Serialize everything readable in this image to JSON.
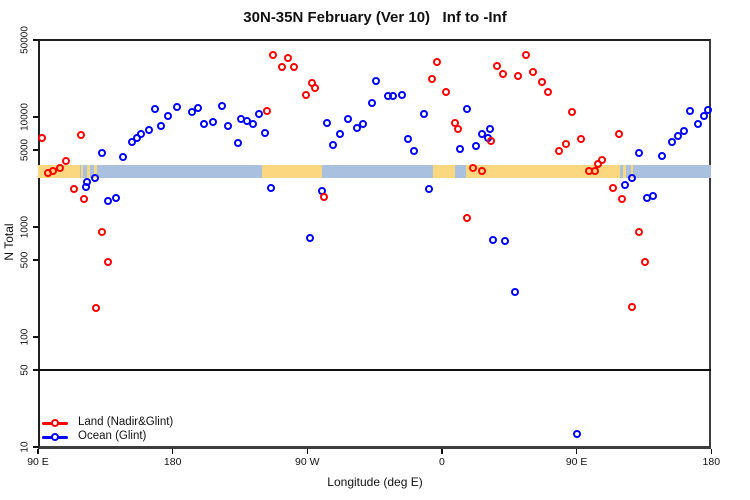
{
  "title": "30N-35N February (Ver 10)   Inf to -Inf",
  "x_axis_label": "Longitude (deg E)",
  "y_axis_label": "N Total",
  "legend": {
    "items": [
      {
        "label": "Land (Nadir&Glint)",
        "color": "#FF0000"
      },
      {
        "label": "Ocean (Glint)",
        "color": "#0000FF"
      }
    ]
  },
  "colors": {
    "land_series": "#FF0000",
    "ocean_series": "#0000FF",
    "strip_land": "#FBD87F",
    "strip_ocean": "#A9C0DE",
    "axis": "#111111"
  },
  "chart_data": {
    "type": "scatter",
    "title": "30N-35N February (Ver 10)   Inf to -Inf",
    "xlabel": "Longitude (deg E)",
    "ylabel": "N Total",
    "x_axis": {
      "note": "longitude wraps eastward, 450 deg span",
      "range": [
        90,
        540
      ],
      "ticks": [
        {
          "value": 90,
          "label": "90 E"
        },
        {
          "value": 180,
          "label": "180"
        },
        {
          "value": 270,
          "label": "90 W"
        },
        {
          "value": 360,
          "label": "0"
        },
        {
          "value": 450,
          "label": "90 E"
        },
        {
          "value": 540,
          "label": "180"
        }
      ],
      "grid": false
    },
    "y_axis": {
      "scale": "log",
      "range": [
        10,
        50000
      ],
      "ticks": [
        50000,
        10000,
        5000,
        1000,
        500,
        100,
        50,
        10
      ],
      "grid": false
    },
    "reference_line_n": 50,
    "legend_position": "bottom-left",
    "land_ocean_strip": {
      "n_range": [
        2800,
        3700
      ],
      "colors": {
        "land": "#FBD87F",
        "ocean": "#A9C0DE"
      },
      "segments": [
        {
          "type": "land",
          "from": 90,
          "to": 118
        },
        {
          "type": "ocean",
          "from": 118,
          "to": 240
        },
        {
          "type": "land",
          "from": 240,
          "to": 280
        },
        {
          "type": "ocean",
          "from": 280,
          "to": 354
        },
        {
          "type": "land",
          "from": 354,
          "to": 479
        },
        {
          "type": "ocean",
          "from": 479,
          "to": 540
        },
        {
          "type": "land",
          "from": 118.5,
          "to": 120
        },
        {
          "type": "land",
          "from": 122.5,
          "to": 124.5
        },
        {
          "type": "land",
          "from": 127.5,
          "to": 129.5
        },
        {
          "type": "ocean",
          "from": 368.5,
          "to": 376
        },
        {
          "type": "land",
          "from": 481,
          "to": 483
        },
        {
          "type": "land",
          "from": 486,
          "to": 488
        }
      ]
    },
    "series": [
      {
        "name": "Land (Nadir&Glint)",
        "color": "#FF0000",
        "points": [
          [
            93,
            6400
          ],
          [
            119,
            6900
          ],
          [
            109,
            4000
          ],
          [
            105,
            3430
          ],
          [
            100,
            3230
          ],
          [
            97,
            3100
          ],
          [
            114,
            2220
          ],
          [
            121,
            1790
          ],
          [
            133,
            900
          ],
          [
            137,
            480
          ],
          [
            129,
            183
          ],
          [
            247,
            36500
          ],
          [
            257,
            34200
          ],
          [
            253,
            28300
          ],
          [
            261,
            28300
          ],
          [
            273,
            20200
          ],
          [
            275,
            18200
          ],
          [
            269,
            15700
          ],
          [
            243,
            11400
          ],
          [
            281,
            1870
          ],
          [
            357,
            31900
          ],
          [
            353,
            22200
          ],
          [
            363,
            16900
          ],
          [
            397,
            29300
          ],
          [
            401,
            24800
          ],
          [
            411,
            23800
          ],
          [
            416,
            36500
          ],
          [
            421,
            25900
          ],
          [
            427,
            21000
          ],
          [
            431,
            16900
          ],
          [
            369,
            8800
          ],
          [
            371,
            7800
          ],
          [
            393,
            6100
          ],
          [
            381,
            3430
          ],
          [
            387,
            3230
          ],
          [
            377,
            1210
          ],
          [
            447,
            11100
          ],
          [
            453,
            6300
          ],
          [
            443,
            5700
          ],
          [
            438,
            4900
          ],
          [
            478,
            7000
          ],
          [
            467,
            4100
          ],
          [
            464,
            3730
          ],
          [
            458,
            3230
          ],
          [
            462,
            3230
          ],
          [
            474,
            2250
          ],
          [
            480,
            1790
          ],
          [
            492,
            900
          ],
          [
            496,
            480
          ],
          [
            487,
            187
          ]
        ]
      },
      {
        "name": "Ocean (Glint)",
        "color": "#0000FF",
        "points": [
          [
            168,
            11900
          ],
          [
            177,
            10300
          ],
          [
            183,
            12400
          ],
          [
            193,
            11100
          ],
          [
            197,
            12100
          ],
          [
            201,
            8650
          ],
          [
            172,
            8290
          ],
          [
            164,
            7630
          ],
          [
            159,
            7030
          ],
          [
            156,
            6440
          ],
          [
            153,
            5950
          ],
          [
            147,
            4360
          ],
          [
            133,
            4710
          ],
          [
            128,
            2780
          ],
          [
            123,
            2560
          ],
          [
            122,
            2330
          ],
          [
            142,
            1840
          ],
          [
            137,
            1720
          ],
          [
            213,
            12600
          ],
          [
            207,
            9000
          ],
          [
            217,
            8290
          ],
          [
            226,
            9600
          ],
          [
            230,
            9200
          ],
          [
            234,
            8650
          ],
          [
            238,
            10700
          ],
          [
            242,
            7200
          ],
          [
            224,
            5800
          ],
          [
            283,
            8800
          ],
          [
            297,
            9600
          ],
          [
            303,
            8000
          ],
          [
            307,
            8650
          ],
          [
            292,
            7030
          ],
          [
            287,
            5600
          ],
          [
            313,
            13300
          ],
          [
            246,
            2280
          ],
          [
            280,
            2140
          ],
          [
            272,
            800
          ],
          [
            316,
            21100
          ],
          [
            324,
            15400
          ],
          [
            327,
            15400
          ],
          [
            333,
            15700
          ],
          [
            348,
            10700
          ],
          [
            377,
            11900
          ],
          [
            337,
            6300
          ],
          [
            341,
            4900
          ],
          [
            372,
            5100
          ],
          [
            383,
            5400
          ],
          [
            392,
            7800
          ],
          [
            387,
            7030
          ],
          [
            391,
            6440
          ],
          [
            351,
            2230
          ],
          [
            394,
            760
          ],
          [
            402,
            740
          ],
          [
            409,
            257
          ],
          [
            526,
            11400
          ],
          [
            535,
            10300
          ],
          [
            538,
            11600
          ],
          [
            531,
            8650
          ],
          [
            522,
            7430
          ],
          [
            518,
            6730
          ],
          [
            514,
            5950
          ],
          [
            507,
            4440
          ],
          [
            492,
            4710
          ],
          [
            487,
            2780
          ],
          [
            482,
            2430
          ],
          [
            497,
            1840
          ],
          [
            501,
            1930
          ],
          [
            450,
            13
          ]
        ]
      }
    ]
  }
}
